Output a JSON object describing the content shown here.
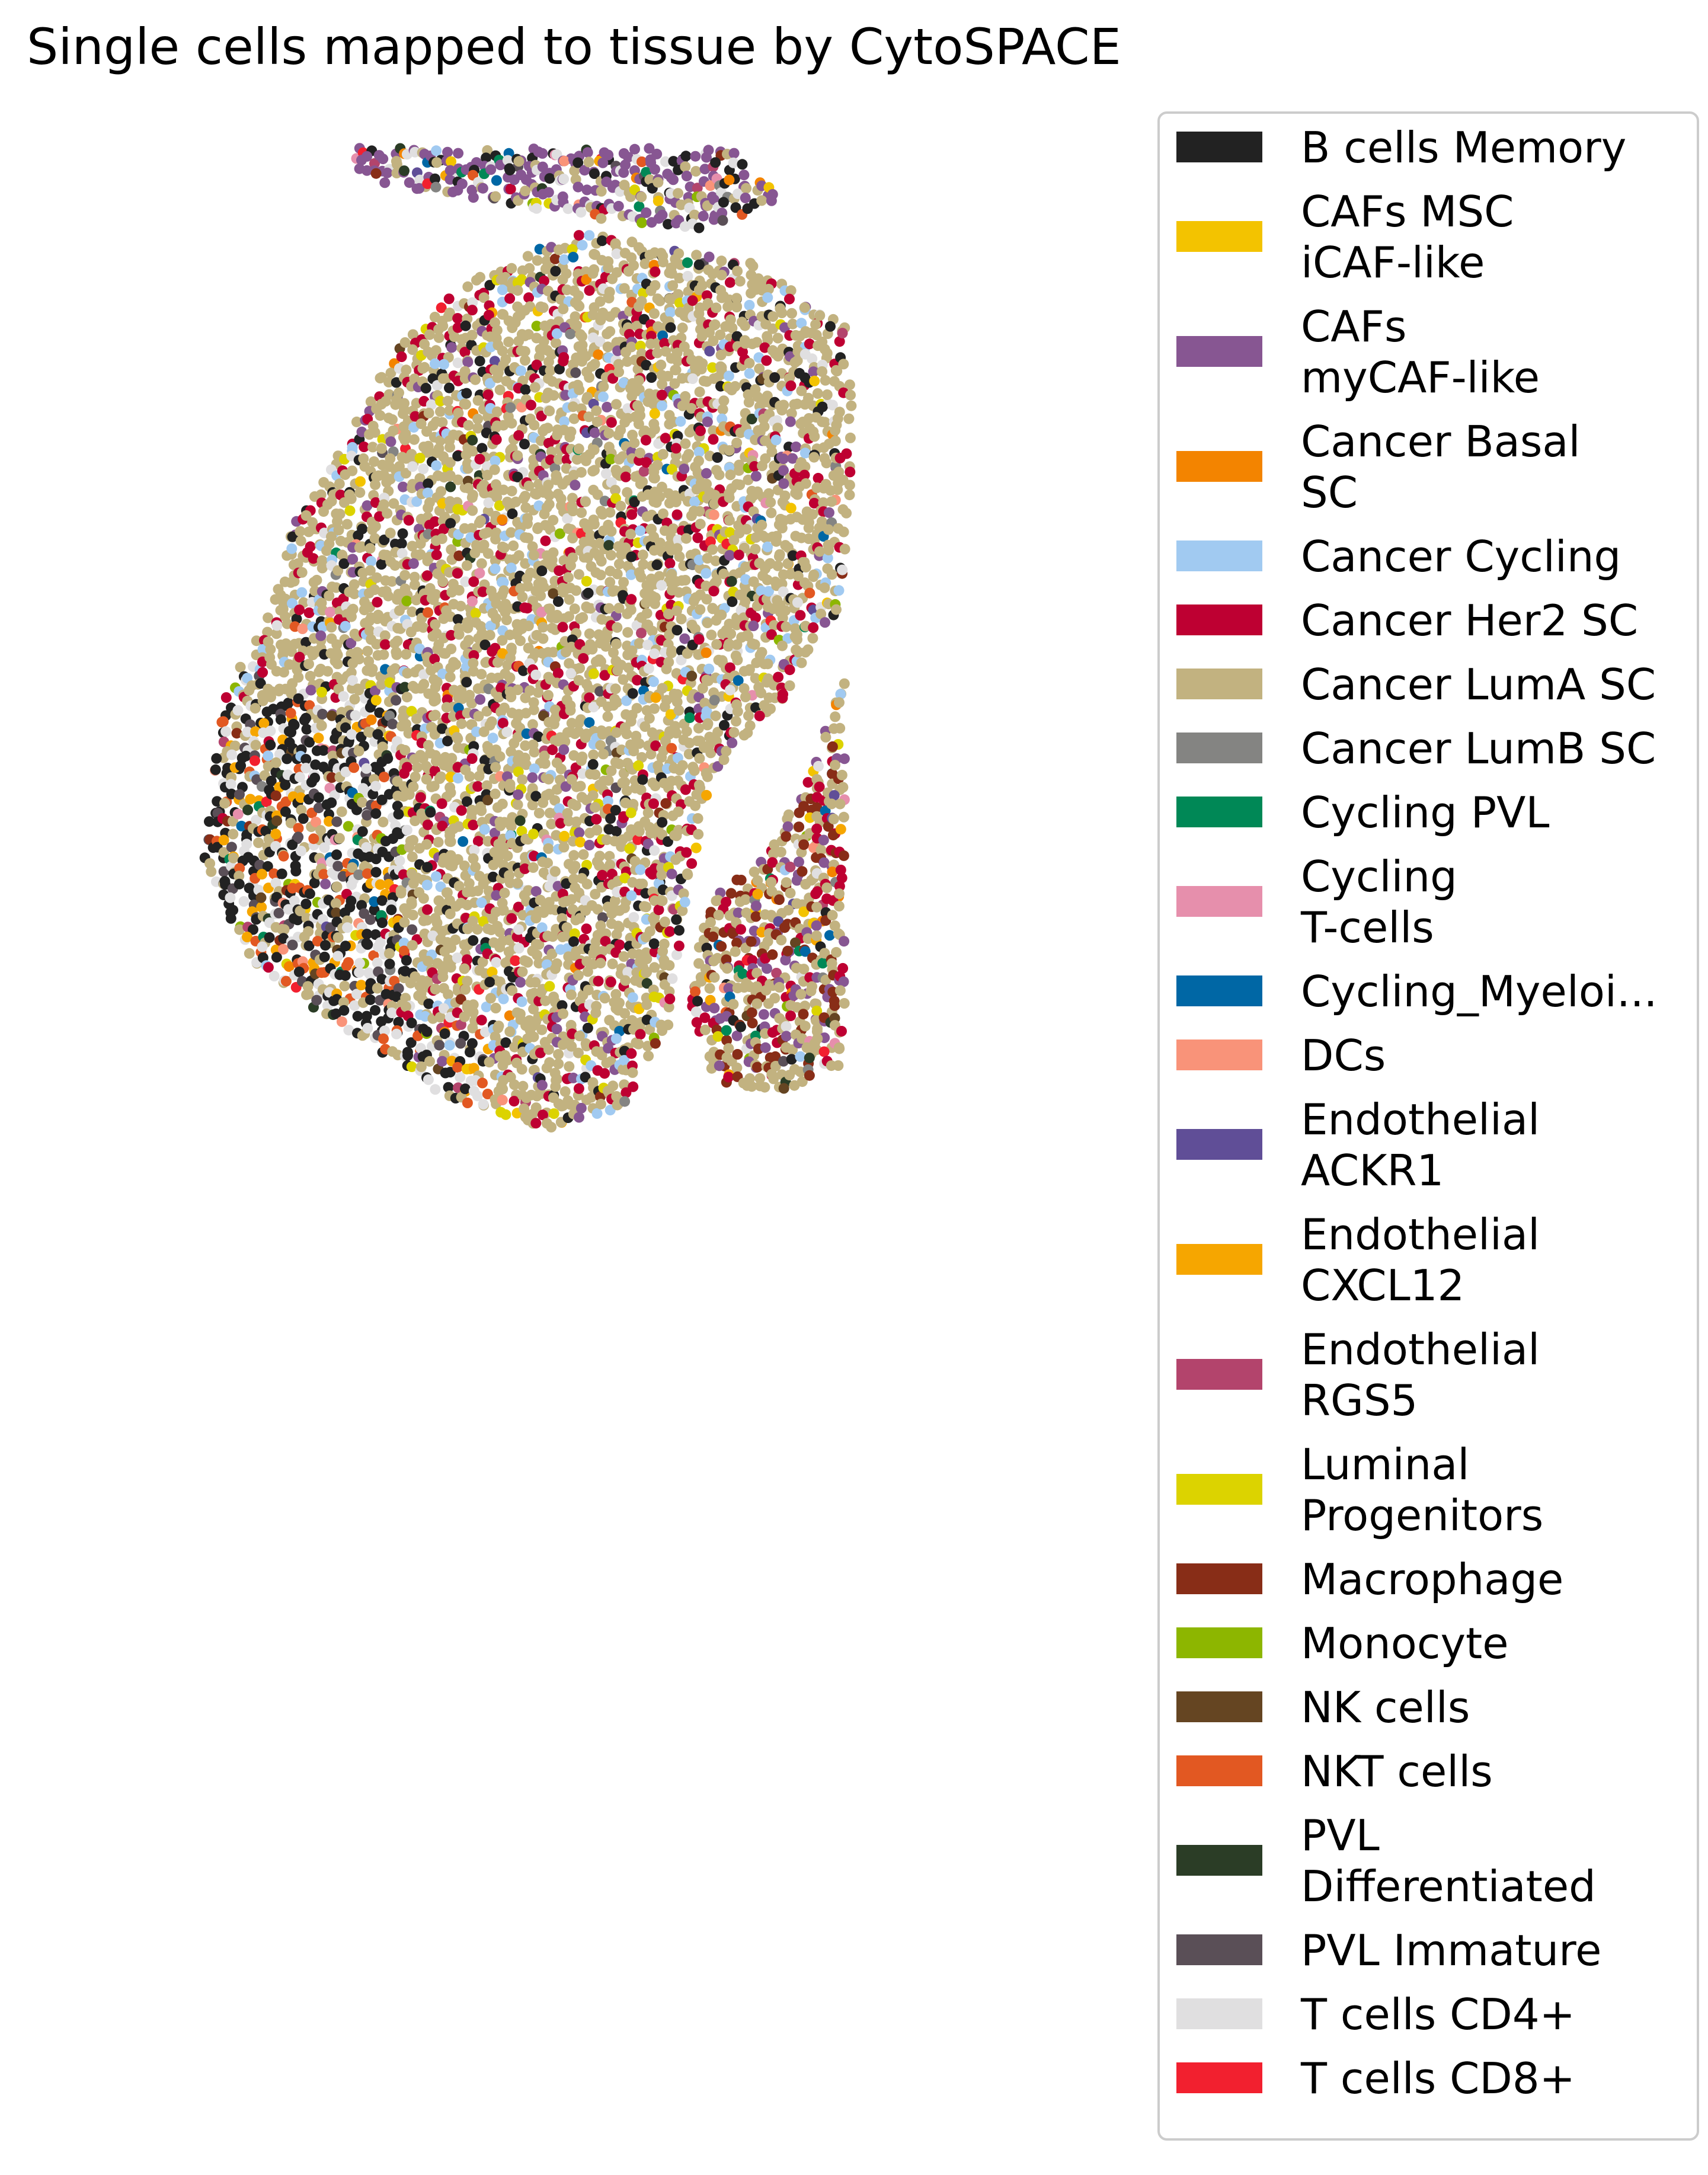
{
  "chart_data": {
    "type": "scatter",
    "title": "Single cells mapped to tissue by CytoSPACE",
    "xlabel": "",
    "ylabel": "",
    "axes_visible": false,
    "grid": false,
    "legend_placement": "right, outside plot area",
    "categories": [
      {
        "label": "B cells Memory",
        "color": "#222222"
      },
      {
        "label": "CAFs MSC\niCAF-like",
        "color": "#f3c300"
      },
      {
        "label": "CAFs\nmyCAF-like",
        "color": "#875692"
      },
      {
        "label": "Cancer Basal\nSC",
        "color": "#f38400"
      },
      {
        "label": "Cancer Cycling",
        "color": "#a1caf1"
      },
      {
        "label": "Cancer Her2 SC",
        "color": "#be0032"
      },
      {
        "label": "Cancer LumA SC",
        "color": "#c2b280"
      },
      {
        "label": "Cancer LumB SC",
        "color": "#848482"
      },
      {
        "label": "Cycling PVL",
        "color": "#008856"
      },
      {
        "label": "Cycling\nT-cells",
        "color": "#e68fac"
      },
      {
        "label": "Cycling_Myeloi...",
        "color": "#0067a5"
      },
      {
        "label": "DCs",
        "color": "#f99379"
      },
      {
        "label": "Endothelial\nACKR1",
        "color": "#604e97"
      },
      {
        "label": "Endothelial\nCXCL12",
        "color": "#f6a600"
      },
      {
        "label": "Endothelial\nRGS5",
        "color": "#b3446c"
      },
      {
        "label": "Luminal\nProgenitors",
        "color": "#dcd300"
      },
      {
        "label": "Macrophage",
        "color": "#882d17"
      },
      {
        "label": "Monocyte",
        "color": "#8db600"
      },
      {
        "label": "NK cells",
        "color": "#654522"
      },
      {
        "label": "NKT cells",
        "color": "#e25822"
      },
      {
        "label": "PVL\nDifferentiated",
        "color": "#2b3d26"
      },
      {
        "label": "PVL Immature",
        "color": "#5a4f57"
      },
      {
        "label": "T cells CD4+",
        "color": "#e0dfe0"
      },
      {
        "label": "T cells CD8+",
        "color": "#f2202f"
      }
    ],
    "tissue_regions": [
      {
        "name": "top-strip",
        "polygon": [
          [
            0.2,
            0.02
          ],
          [
            0.62,
            0.02
          ],
          [
            0.68,
            0.07
          ],
          [
            0.58,
            0.1
          ],
          [
            0.4,
            0.08
          ],
          [
            0.2,
            0.05
          ]
        ]
      },
      {
        "name": "main-tissue",
        "polygon": [
          [
            0.45,
            0.1
          ],
          [
            0.65,
            0.13
          ],
          [
            0.75,
            0.19
          ],
          [
            0.76,
            0.28
          ],
          [
            0.75,
            0.45
          ],
          [
            0.68,
            0.55
          ],
          [
            0.6,
            0.62
          ],
          [
            0.57,
            0.75
          ],
          [
            0.55,
            0.87
          ],
          [
            0.5,
            0.94
          ],
          [
            0.42,
            0.96
          ],
          [
            0.3,
            0.93
          ],
          [
            0.18,
            0.86
          ],
          [
            0.08,
            0.8
          ],
          [
            0.03,
            0.7
          ],
          [
            0.05,
            0.55
          ],
          [
            0.11,
            0.45
          ],
          [
            0.13,
            0.38
          ],
          [
            0.19,
            0.3
          ],
          [
            0.24,
            0.22
          ],
          [
            0.32,
            0.15
          ]
        ]
      },
      {
        "name": "right-island",
        "polygon": [
          [
            0.75,
            0.53
          ],
          [
            0.75,
            0.9
          ],
          [
            0.66,
            0.93
          ],
          [
            0.6,
            0.91
          ],
          [
            0.57,
            0.82
          ],
          [
            0.6,
            0.74
          ],
          [
            0.66,
            0.7
          ],
          [
            0.71,
            0.62
          ]
        ]
      }
    ],
    "xlim": [
      0,
      1
    ],
    "ylim": [
      0,
      1
    ]
  }
}
